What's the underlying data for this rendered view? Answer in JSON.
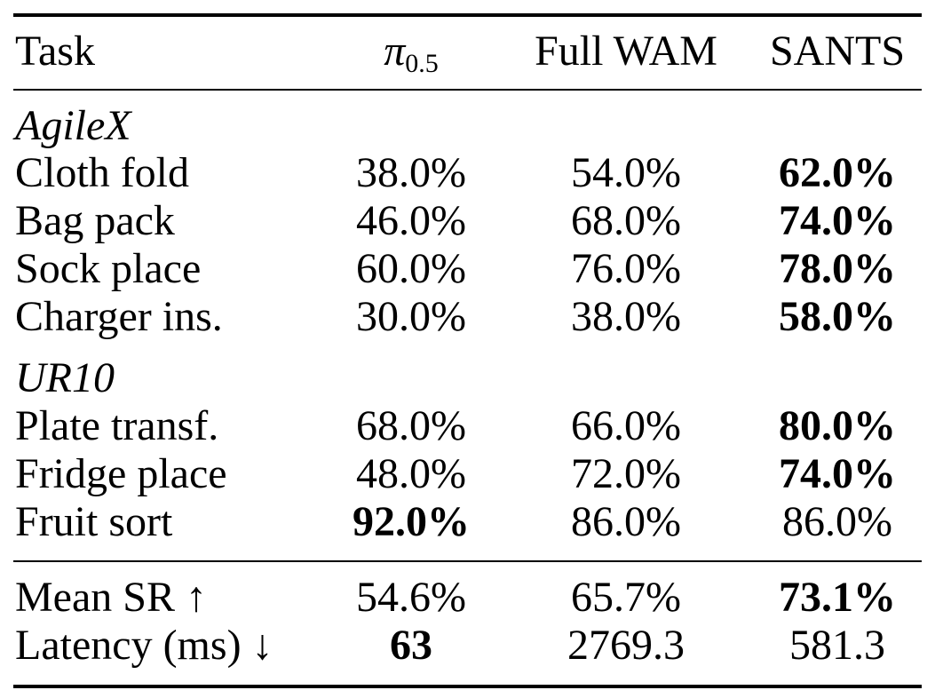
{
  "table": {
    "header": {
      "task": "Task",
      "pi_base": "π",
      "pi_sub": "0.5",
      "full_wam": "Full WAM",
      "sants": "SANTS"
    },
    "sections": [
      {
        "name": "AgileX",
        "rows": [
          {
            "task": "Cloth fold",
            "pi": "38.0%",
            "wam": "54.0%",
            "sants": "62.0%",
            "best": "sants"
          },
          {
            "task": "Bag pack",
            "pi": "46.0%",
            "wam": "68.0%",
            "sants": "74.0%",
            "best": "sants"
          },
          {
            "task": "Sock place",
            "pi": "60.0%",
            "wam": "76.0%",
            "sants": "78.0%",
            "best": "sants"
          },
          {
            "task": "Charger ins.",
            "pi": "30.0%",
            "wam": "38.0%",
            "sants": "58.0%",
            "best": "sants"
          }
        ]
      },
      {
        "name": "UR10",
        "rows": [
          {
            "task": "Plate transf.",
            "pi": "68.0%",
            "wam": "66.0%",
            "sants": "80.0%",
            "best": "sants"
          },
          {
            "task": "Fridge place",
            "pi": "48.0%",
            "wam": "72.0%",
            "sants": "74.0%",
            "best": "sants"
          },
          {
            "task": "Fruit sort",
            "pi": "92.0%",
            "wam": "86.0%",
            "sants": "86.0%",
            "best": "pi"
          }
        ]
      }
    ],
    "summary": [
      {
        "task": "Mean SR ↑",
        "pi": "54.6%",
        "wam": "65.7%",
        "sants": "73.1%",
        "best": "sants"
      },
      {
        "task": "Latency (ms) ↓",
        "pi": "63",
        "wam": "2769.3",
        "sants": "581.3",
        "best": "pi"
      }
    ]
  }
}
